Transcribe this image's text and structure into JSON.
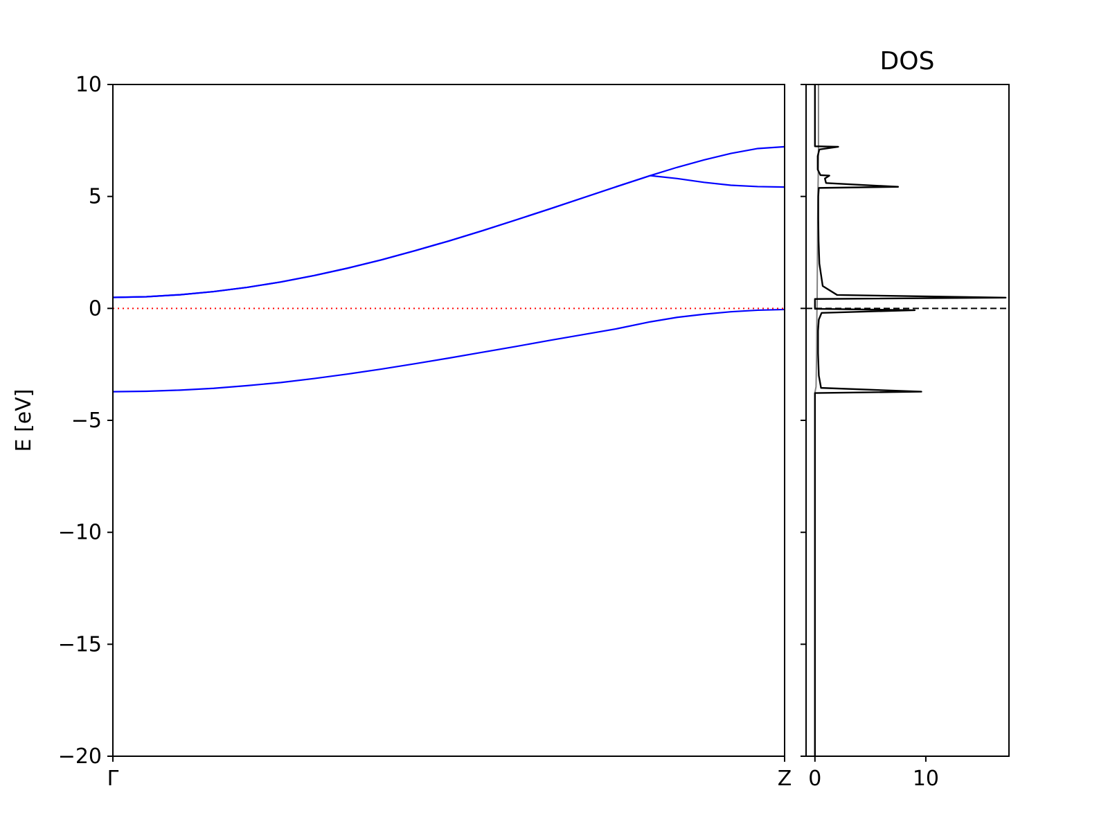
{
  "colors": {
    "band": "#0000ff",
    "fermi_band": "#ff0000",
    "dos_total": "#000000",
    "dos_integrated": "#808080",
    "axis": "#000000"
  },
  "chart_data": [
    {
      "type": "line",
      "panel": "band-structure",
      "title": "",
      "xlabel": "",
      "ylabel": "E [eV]",
      "ylim": [
        -20,
        10
      ],
      "yticks": [
        10,
        5,
        0,
        -5,
        -10,
        -15,
        -20
      ],
      "ytick_labels": [
        "10",
        "5",
        "0",
        "−5",
        "−10",
        "−15",
        "−20"
      ],
      "xlim": [
        0,
        1
      ],
      "xticks": [
        0,
        1
      ],
      "xtick_labels": [
        "Γ",
        "Z"
      ],
      "grid": false,
      "fermi_level": 0,
      "x": [
        0,
        0.05,
        0.1,
        0.15,
        0.2,
        0.25,
        0.3,
        0.35,
        0.4,
        0.45,
        0.5,
        0.55,
        0.6,
        0.65,
        0.7,
        0.75,
        0.8,
        0.84,
        0.88,
        0.92,
        0.96,
        1.0
      ],
      "series": [
        {
          "values": [
            -3.72,
            -3.7,
            -3.65,
            -3.57,
            -3.45,
            -3.31,
            -3.13,
            -2.93,
            -2.71,
            -2.47,
            -2.22,
            -1.96,
            -1.7,
            -1.43,
            -1.17,
            -0.91,
            -0.6,
            -0.4,
            -0.26,
            -0.15,
            -0.08,
            -0.05
          ]
        },
        {
          "values": [
            0.49,
            0.52,
            0.61,
            0.75,
            0.94,
            1.18,
            1.47,
            1.8,
            2.17,
            2.58,
            3.01,
            3.47,
            3.95,
            4.44,
            4.94,
            5.44,
            5.93,
            6.3,
            6.63,
            6.92,
            7.14,
            7.22
          ]
        },
        {
          "values": [
            0.49,
            0.52,
            0.61,
            0.75,
            0.94,
            1.18,
            1.47,
            1.8,
            2.17,
            2.58,
            3.01,
            3.47,
            3.95,
            4.44,
            4.94,
            5.44,
            5.93,
            5.8,
            5.63,
            5.5,
            5.44,
            5.42
          ]
        }
      ]
    },
    {
      "type": "line",
      "panel": "dos",
      "title": "DOS",
      "xlabel": "",
      "ylabel": "",
      "xlim": [
        -0.8,
        17.5
      ],
      "xticks": [
        0,
        10
      ],
      "xtick_labels": [
        "0",
        "10"
      ],
      "ylim": [
        -20,
        10
      ],
      "grid": false,
      "fermi_level": 0,
      "series": [
        {
          "role": "total",
          "points": [
            [
              0,
              -20
            ],
            [
              0,
              -3.78
            ],
            [
              9.6,
              -3.72
            ],
            [
              0.55,
              -3.55
            ],
            [
              0.35,
              -3.0
            ],
            [
              0.28,
              -2.0
            ],
            [
              0.28,
              -1.0
            ],
            [
              0.35,
              -0.5
            ],
            [
              0.6,
              -0.2
            ],
            [
              9.0,
              -0.08
            ],
            [
              0,
              -0.02
            ],
            [
              0,
              0.42
            ],
            [
              17.2,
              0.48
            ],
            [
              2.0,
              0.6
            ],
            [
              0.7,
              1.0
            ],
            [
              0.4,
              2.0
            ],
            [
              0.33,
              3.0
            ],
            [
              0.3,
              4.0
            ],
            [
              0.3,
              5.0
            ],
            [
              0.35,
              5.38
            ],
            [
              7.5,
              5.43
            ],
            [
              1.0,
              5.6
            ],
            [
              0.9,
              5.8
            ],
            [
              1.3,
              5.93
            ],
            [
              0.5,
              5.95
            ],
            [
              0.25,
              6.2
            ],
            [
              0.25,
              6.8
            ],
            [
              0.4,
              7.1
            ],
            [
              2.1,
              7.22
            ],
            [
              0,
              7.24
            ],
            [
              0,
              10
            ]
          ]
        },
        {
          "role": "integrated",
          "points": [
            [
              0,
              -20
            ],
            [
              0,
              -3.75
            ],
            [
              0.1,
              -3.5
            ],
            [
              0.15,
              -2.0
            ],
            [
              0.18,
              -0.1
            ],
            [
              0.2,
              0.5
            ],
            [
              0.22,
              2.0
            ],
            [
              0.25,
              4.0
            ],
            [
              0.28,
              5.4
            ],
            [
              0.3,
              6.0
            ],
            [
              0.32,
              7.2
            ],
            [
              0.32,
              10
            ]
          ]
        }
      ]
    }
  ]
}
